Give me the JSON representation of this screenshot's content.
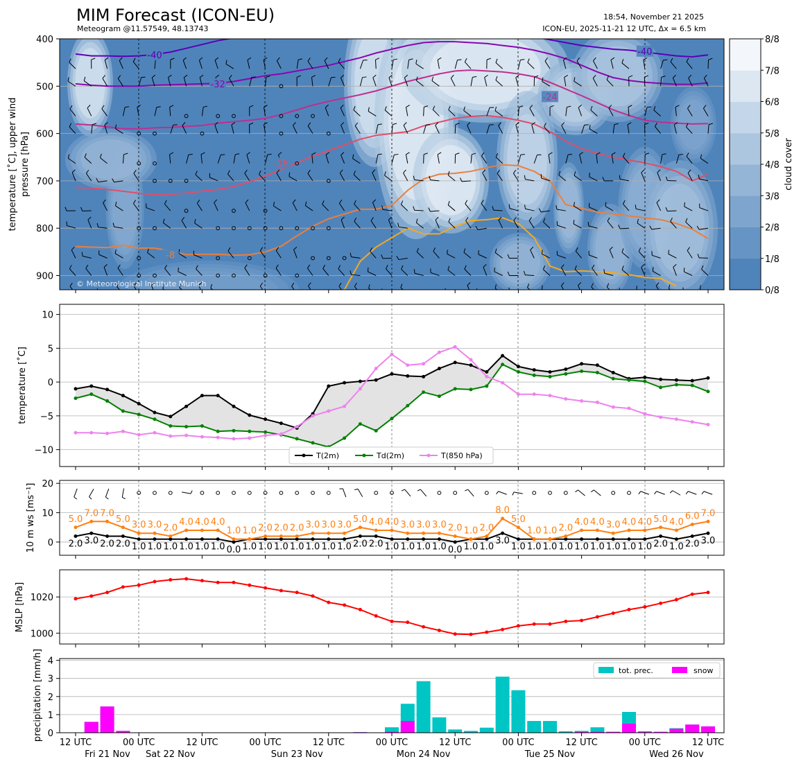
{
  "header": {
    "title": "MIM Forecast (ICON-EU)",
    "subtitle": "Meteogram @11.57549, 48.13743",
    "timestamp": "18:54, November 21 2025",
    "run_info": "ICON-EU, 2025-11-21 12 UTC, Δx = 6.5 km",
    "copyright": "© Meteorological Institute Munich"
  },
  "colors": {
    "t2m": "#000000",
    "td2m": "#008000",
    "t850": "#ee82ee",
    "wind_gust": "#ff7f0e",
    "mslp": "#ff0000",
    "tot_prec": "#00c5c5",
    "snow": "#ff00ff",
    "cloud_low": "#4f84bb",
    "cloud_high": "#f3f7fb"
  },
  "x_axis": {
    "tick_labels": [
      "12 UTC",
      "00 UTC",
      "12 UTC",
      "00 UTC",
      "12 UTC",
      "00 UTC",
      "12 UTC",
      "00 UTC",
      "12 UTC",
      "00 UTC",
      "12 UTC"
    ],
    "day_labels": [
      "Fri 21 Nov",
      "Sat 22 Nov",
      "Sun 23 Nov",
      "Mon 24 Nov",
      "Tue 25 Nov",
      "Wed 26 Nov"
    ]
  },
  "chart_data": [
    {
      "type": "heatmap",
      "panel": "upper_air",
      "ylabel_line1": "temperature [˚C], upper wind",
      "ylabel_line2": "pressure [hPa]",
      "y_ticks": [
        400,
        500,
        600,
        700,
        800,
        900
      ],
      "ylim": [
        930,
        400
      ],
      "colorbar_label": "cloud cover",
      "colorbar_ticks": [
        "0/8",
        "1/8",
        "2/8",
        "3/8",
        "4/8",
        "5/8",
        "6/8",
        "7/8",
        "8/8"
      ],
      "contour_labels": [
        "-40",
        "-32",
        "-24",
        "-16",
        "-8",
        "-40"
      ],
      "isotherms": [
        {
          "level": "-40",
          "color": "#5b00b7",
          "pressure": [
            432,
            436,
            436,
            437,
            436,
            433,
            428,
            420,
            412,
            404,
            398,
            390,
            384,
            380,
            378,
            376,
            376,
            376,
            377,
            378,
            378,
            378,
            378,
            380,
            383,
            384,
            386,
            388,
            391,
            395,
            402,
            408,
            414,
            418,
            422,
            424,
            428,
            432,
            436,
            438,
            434
          ]
        },
        {
          "level": "-32",
          "color": "#8a06b0",
          "pressure": [
            495,
            498,
            500,
            500,
            500,
            498,
            497,
            496,
            495,
            494,
            490,
            484,
            478,
            474,
            468,
            462,
            456,
            448,
            440,
            430,
            422,
            414,
            408,
            406,
            406,
            408,
            410,
            414,
            418,
            424,
            432,
            442,
            456,
            470,
            482,
            488,
            492,
            494,
            496,
            496,
            493
          ]
        },
        {
          "level": "-24",
          "color": "#bf2e8e",
          "pressure": [
            580,
            582,
            586,
            590,
            590,
            588,
            587,
            585,
            583,
            578,
            575,
            572,
            568,
            560,
            550,
            540,
            532,
            525,
            518,
            510,
            500,
            490,
            482,
            474,
            468,
            466,
            468,
            470,
            474,
            480,
            492,
            506,
            520,
            535,
            550,
            562,
            572,
            576,
            578,
            580,
            579
          ]
        },
        {
          "level": "-16",
          "color": "#df4e6a",
          "pressure": [
            714,
            715,
            718,
            722,
            726,
            729,
            728,
            726,
            722,
            718,
            712,
            702,
            690,
            676,
            662,
            648,
            636,
            624,
            612,
            604,
            600,
            596,
            584,
            576,
            568,
            564,
            562,
            566,
            572,
            580,
            596,
            616,
            632,
            642,
            650,
            656,
            662,
            670,
            680,
            700,
            686
          ]
        },
        {
          "level": "-8",
          "color": "#ec7f3b",
          "pressure": [
            839,
            840,
            841,
            836,
            842,
            842,
            848,
            856,
            855,
            855,
            857,
            856,
            850,
            838,
            816,
            796,
            780,
            770,
            760,
            760,
            752,
            720,
            696,
            686,
            684,
            680,
            672,
            666,
            668,
            680,
            700,
            750,
            758,
            766,
            770,
            774,
            778,
            782,
            790,
            802,
            822
          ]
        },
        {
          "level": "0",
          "color": "#f4aa22",
          "pressure": [
            null,
            null,
            null,
            null,
            null,
            null,
            null,
            null,
            null,
            null,
            null,
            null,
            null,
            null,
            null,
            null,
            null,
            930,
            870,
            840,
            820,
            800,
            812,
            812,
            796,
            784,
            782,
            778,
            790,
            820,
            880,
            892,
            890,
            892,
            894,
            898,
            904,
            906,
            922,
            null,
            null
          ]
        }
      ]
    },
    {
      "type": "line",
      "panel": "temperature",
      "ylabel": "temperature [˚C]",
      "ylim": [
        -12.5,
        11.5
      ],
      "y_ticks": [
        10,
        5,
        0,
        -5,
        -10
      ],
      "grid": true,
      "legend_position": "bottom-center",
      "series": [
        {
          "name": "T(2m)",
          "values": [
            -1.0,
            -0.6,
            -1.1,
            -2.0,
            -3.2,
            -4.5,
            -5.1,
            -3.6,
            -2.0,
            -2.0,
            -3.6,
            -4.9,
            -5.5,
            -6.1,
            -6.8,
            -4.7,
            -0.6,
            -0.1,
            0.1,
            0.3,
            1.2,
            0.9,
            0.8,
            2.0,
            2.9,
            2.5,
            1.5,
            3.9,
            2.3,
            1.8,
            1.5,
            1.9,
            2.7,
            2.5,
            1.4,
            0.5,
            0.7,
            0.4,
            0.3,
            0.2,
            0.6
          ]
        },
        {
          "name": "Td(2m)",
          "values": [
            -2.4,
            -1.8,
            -2.8,
            -4.3,
            -4.8,
            -5.5,
            -6.5,
            -6.6,
            -6.5,
            -7.3,
            -7.2,
            -7.3,
            -7.4,
            -7.8,
            -8.4,
            -9.0,
            -9.6,
            -8.3,
            -6.2,
            -7.2,
            -5.4,
            -3.5,
            -1.5,
            -2.1,
            -1.0,
            -1.1,
            -0.6,
            2.6,
            1.5,
            1.0,
            0.8,
            1.2,
            1.6,
            1.4,
            0.5,
            0.3,
            0.1,
            -0.8,
            -0.4,
            -0.5,
            -1.4
          ]
        },
        {
          "name": "T(850 hPa)",
          "values": [
            -7.5,
            -7.5,
            -7.6,
            -7.3,
            -7.8,
            -7.5,
            -8.0,
            -7.9,
            -8.1,
            -8.2,
            -8.4,
            -8.3,
            -7.9,
            -7.7,
            -6.6,
            -5.0,
            -4.3,
            -3.6,
            -1.0,
            2.0,
            4.1,
            2.5,
            2.7,
            4.4,
            5.2,
            3.3,
            0.8,
            -0.1,
            -1.8,
            -1.8,
            -2.0,
            -2.5,
            -2.8,
            -3.0,
            -3.7,
            -3.9,
            -4.7,
            -5.2,
            -5.5,
            -5.9,
            -6.3
          ]
        }
      ]
    },
    {
      "type": "line",
      "panel": "wind",
      "ylabel": "10 m ws [ms⁻¹]",
      "ylim": [
        -4.5,
        21
      ],
      "y_ticks": [
        20,
        10,
        0
      ],
      "grid": true,
      "series": [
        {
          "name": "",
          "values": [
            2.0,
            3.0,
            2.0,
            2.0,
            1.0,
            1.0,
            1.0,
            1.0,
            1.0,
            1.0,
            0.0,
            1.0,
            1.0,
            1.0,
            1.0,
            1.0,
            1.0,
            1.0,
            2.0,
            2.0,
            1.0,
            1.0,
            1.0,
            1.0,
            0.0,
            1.0,
            1.0,
            3.0,
            1.0,
            1.0,
            1.0,
            1.0,
            1.0,
            1.0,
            1.0,
            1.0,
            1.0,
            2.0,
            1.0,
            2.0,
            3.0
          ],
          "labels": [
            "2.0",
            "3.0",
            "2.0",
            "2.0",
            "1.0",
            "1.0",
            "1.0",
            "1.0",
            "1.0",
            "1.0",
            "0.0",
            "1.0",
            "1.0",
            "1.0",
            "1.0",
            "1.0",
            "1.0",
            "1.0",
            "2.0",
            "2.0",
            "1.0",
            "1.0",
            "1.0",
            "1.0",
            "0.0",
            "1.0",
            "1.0",
            "3.0",
            "1.0",
            "1.0",
            "1.0",
            "1.0",
            "1.0",
            "1.0",
            "1.0",
            "1.0",
            "1.0",
            "2.0",
            "1.0",
            "2.0",
            "3.0"
          ]
        },
        {
          "name": "",
          "values": [
            5.0,
            7.0,
            7.0,
            5.0,
            3.0,
            3.0,
            2.0,
            4.0,
            4.0,
            4.0,
            1.0,
            1.0,
            2.0,
            2.0,
            2.0,
            3.0,
            3.0,
            3.0,
            5.0,
            4.0,
            4.0,
            3.0,
            3.0,
            3.0,
            2.0,
            1.0,
            2.0,
            8.0,
            5.0,
            1.0,
            1.0,
            2.0,
            4.0,
            4.0,
            3.0,
            4.0,
            4.0,
            5.0,
            4.0,
            6.0,
            7.0
          ],
          "labels": [
            "5.0",
            "7.0",
            "7.0",
            "5.0",
            "3.0",
            "3.0",
            "2.0",
            "4.0",
            "4.0",
            "4.0",
            "1.0",
            "1.0",
            "2.0",
            "2.0",
            "2.0",
            "3.0",
            "3.0",
            "3.0",
            "5.0",
            "4.0",
            "4.0",
            "3.0",
            "3.0",
            "3.0",
            "2.0",
            "1.0",
            "2.0",
            "8.0",
            "5.0",
            "1.0",
            "1.0",
            "2.0",
            "4.0",
            "4.0",
            "3.0",
            "4.0",
            "4.0",
            "5.0",
            "4.0",
            "6.0",
            "7.0"
          ]
        }
      ],
      "wind_barbs": [
        {
          "speed": 5,
          "dir": 200
        },
        {
          "speed": 5,
          "dir": 210
        },
        {
          "speed": 5,
          "dir": 200
        },
        {
          "speed": 5,
          "dir": 190
        },
        {
          "speed": 0,
          "dir": 0
        },
        {
          "speed": 0,
          "dir": 0
        },
        {
          "speed": 0,
          "dir": 0
        },
        {
          "speed": 5,
          "dir": 100
        },
        {
          "speed": 0,
          "dir": 0
        },
        {
          "speed": 0,
          "dir": 0
        },
        {
          "speed": 0,
          "dir": 0
        },
        {
          "speed": 0,
          "dir": 0
        },
        {
          "speed": 0,
          "dir": 0
        },
        {
          "speed": 0,
          "dir": 0
        },
        {
          "speed": 0,
          "dir": 0
        },
        {
          "speed": 0,
          "dir": 0
        },
        {
          "speed": 0,
          "dir": 0
        },
        {
          "speed": 5,
          "dir": 340
        },
        {
          "speed": 5,
          "dir": 330
        },
        {
          "speed": 0,
          "dir": 0
        },
        {
          "speed": 0,
          "dir": 0
        },
        {
          "speed": 5,
          "dir": 320
        },
        {
          "speed": 5,
          "dir": 320
        },
        {
          "speed": 0,
          "dir": 0
        },
        {
          "speed": 0,
          "dir": 0
        },
        {
          "speed": 5,
          "dir": 320
        },
        {
          "speed": 0,
          "dir": 0
        },
        {
          "speed": 5,
          "dir": 290
        },
        {
          "speed": 5,
          "dir": 280
        },
        {
          "speed": 0,
          "dir": 0
        },
        {
          "speed": 0,
          "dir": 0
        },
        {
          "speed": 0,
          "dir": 0
        },
        {
          "speed": 5,
          "dir": 310
        },
        {
          "speed": 5,
          "dir": 310
        },
        {
          "speed": 0,
          "dir": 0
        },
        {
          "speed": 0,
          "dir": 0
        },
        {
          "speed": 5,
          "dir": 290
        },
        {
          "speed": 5,
          "dir": 290
        },
        {
          "speed": 5,
          "dir": 300
        },
        {
          "speed": 5,
          "dir": 290
        },
        {
          "speed": 5,
          "dir": 290
        }
      ]
    },
    {
      "type": "line",
      "panel": "pressure",
      "ylabel": "MSLP [hPa]",
      "ylim": [
        994,
        1035
      ],
      "y_ticks": [
        1020,
        1000
      ],
      "grid": true,
      "series": [
        {
          "name": "",
          "values": [
            1019,
            1020.5,
            1022.5,
            1025.5,
            1026.5,
            1028.5,
            1029.5,
            1030,
            1029,
            1028,
            1028,
            1026.5,
            1025,
            1023.5,
            1022.5,
            1020.5,
            1017,
            1015.5,
            1013,
            1009.5,
            1006.5,
            1006,
            1003.5,
            1001.5,
            999.5,
            999.3,
            1000.5,
            1002,
            1004,
            1005,
            1005,
            1006.5,
            1007,
            1009,
            1011,
            1013,
            1014.5,
            1016.5,
            1018.5,
            1021.5,
            1022.5
          ]
        }
      ]
    },
    {
      "type": "bar",
      "panel": "precipitation",
      "ylabel": "precipitation [mm/h]",
      "ylim": [
        0,
        4.1
      ],
      "y_ticks": [
        0,
        1,
        2,
        3,
        4
      ],
      "grid": true,
      "legend_position": "top-right",
      "series": [
        {
          "name": "tot. prec.",
          "values": [
            0,
            0.6,
            1.45,
            0.1,
            0,
            0,
            0,
            0,
            0,
            0,
            0,
            0,
            0,
            0,
            0,
            0,
            0,
            0,
            0.03,
            0,
            0.3,
            1.6,
            2.85,
            0.85,
            0.18,
            0.1,
            0.28,
            3.1,
            2.35,
            0.65,
            0.65,
            0.08,
            0.1,
            0.3,
            0.05,
            1.15,
            0.08,
            0.05,
            0.25,
            0.45,
            0.35
          ]
        },
        {
          "name": "snow",
          "values": [
            0,
            0.6,
            1.45,
            0.1,
            0,
            0,
            0,
            0,
            0,
            0,
            0,
            0,
            0,
            0,
            0,
            0,
            0,
            0,
            0.03,
            0,
            0.05,
            0.65,
            0,
            0,
            0,
            0,
            0,
            0,
            0,
            0,
            0,
            0,
            0.05,
            0.05,
            0.05,
            0.5,
            0.05,
            0.05,
            0.22,
            0.45,
            0.35
          ]
        }
      ]
    }
  ]
}
